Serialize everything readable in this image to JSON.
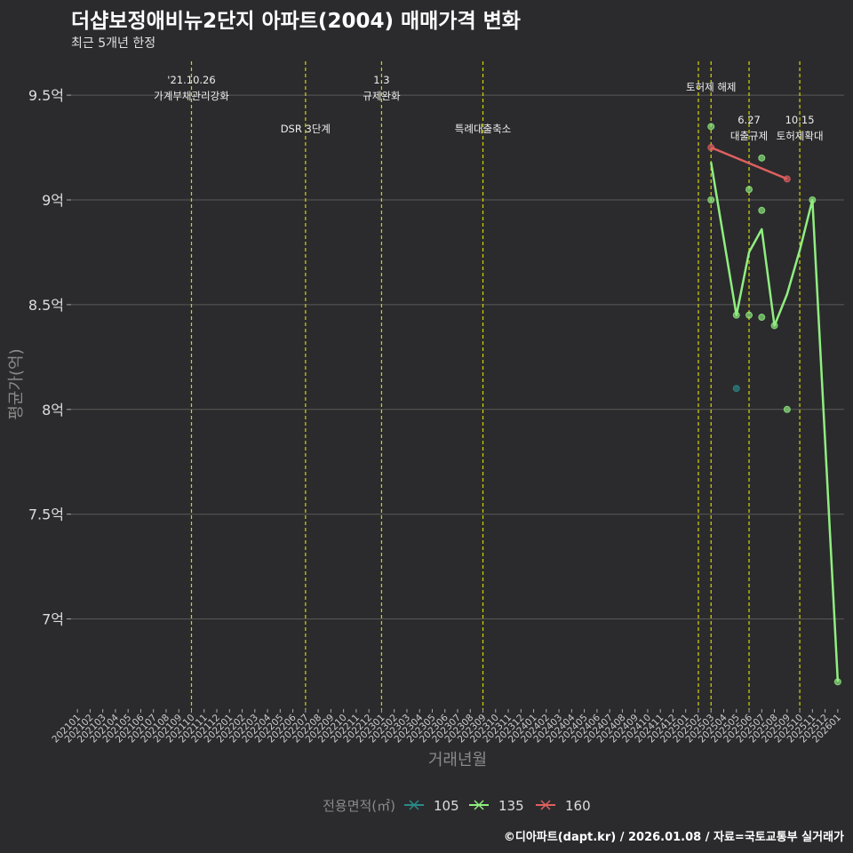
{
  "header": {
    "title": "더샵보정애비뉴2단지 아파트(2004) 매매가격 변화",
    "subtitle": "최근 5개년 한정"
  },
  "footer": {
    "source": "©디아파트(dapt.kr) / 2026.01.08 / 자료=국토교통부 실거래가"
  },
  "colors": {
    "background": "#2b2b2d",
    "grid": "#5a5a5a",
    "event_line": "#d4d400",
    "s105": "#2a8a8a",
    "s135": "#90ee80",
    "s160": "#e06060"
  },
  "chart_data": {
    "type": "line",
    "title": "더샵보정애비뉴2단지 아파트(2004) 매매가격 변화",
    "xlabel": "거래년월",
    "ylabel": "평균가(억)",
    "ylim": [
      6.57,
      9.67
    ],
    "y_ticks": [
      7,
      7.5,
      8,
      8.5,
      9,
      9.5
    ],
    "y_tick_labels": [
      "7억",
      "7.5억",
      "8억",
      "8.5억",
      "9억",
      "9.5억"
    ],
    "categories": [
      "202101",
      "202102",
      "202103",
      "202104",
      "202105",
      "202106",
      "202107",
      "202108",
      "202109",
      "202110",
      "202111",
      "202112",
      "202201",
      "202202",
      "202203",
      "202204",
      "202205",
      "202206",
      "202207",
      "202208",
      "202209",
      "202210",
      "202211",
      "202212",
      "202301",
      "202302",
      "202303",
      "202304",
      "202305",
      "202306",
      "202307",
      "202308",
      "202309",
      "202310",
      "202311",
      "202312",
      "202401",
      "202402",
      "202403",
      "202404",
      "202405",
      "202406",
      "202407",
      "202408",
      "202409",
      "202410",
      "202411",
      "202412",
      "202501",
      "202502",
      "202503",
      "202504",
      "202505",
      "202506",
      "202507",
      "202508",
      "202509",
      "202510",
      "202511",
      "202512",
      "202601"
    ],
    "legend_title": "전용면적(㎡)",
    "legend_position": "bottom",
    "events": [
      {
        "month": "202110",
        "label": "'21.10.26\n가계부채관리강화",
        "level": 1
      },
      {
        "month": "202207",
        "label": "DSR 3단계",
        "level": 2
      },
      {
        "month": "202301",
        "label": "1.3\n규제완화",
        "level": 1
      },
      {
        "month": "202309",
        "label": "특례대출축소",
        "level": 2
      },
      {
        "month": "202502",
        "label": "",
        "level": 0
      },
      {
        "month": "202503",
        "label": "토허제 해제",
        "level": 1
      },
      {
        "month": "202506",
        "label": "6.27\n대출규제",
        "level": 3
      },
      {
        "month": "202510",
        "label": "10.15\n토허제확대",
        "level": 3
      }
    ],
    "series": [
      {
        "name": "105",
        "color_key": "s105",
        "line": [],
        "points": [
          {
            "x": "202505",
            "y": 8.1
          }
        ]
      },
      {
        "name": "135",
        "color_key": "s135",
        "line": [
          {
            "x": "202503",
            "y": 9.18
          },
          {
            "x": "202505",
            "y": 8.45
          },
          {
            "x": "202506",
            "y": 8.75
          },
          {
            "x": "202507",
            "y": 8.86
          },
          {
            "x": "202508",
            "y": 8.4
          },
          {
            "x": "202509",
            "y": 8.55
          },
          {
            "x": "202510",
            "y": 8.76
          },
          {
            "x": "202511",
            "y": 9.0
          },
          {
            "x": "202601",
            "y": 6.7
          }
        ],
        "points": [
          {
            "x": "202503",
            "y": 9.35
          },
          {
            "x": "202503",
            "y": 9.0
          },
          {
            "x": "202505",
            "y": 8.45
          },
          {
            "x": "202506",
            "y": 9.05
          },
          {
            "x": "202506",
            "y": 8.45
          },
          {
            "x": "202507",
            "y": 9.2
          },
          {
            "x": "202507",
            "y": 8.95
          },
          {
            "x": "202507",
            "y": 8.44
          },
          {
            "x": "202508",
            "y": 8.4
          },
          {
            "x": "202509",
            "y": 8.0
          },
          {
            "x": "202511",
            "y": 9.0
          },
          {
            "x": "202601",
            "y": 6.7
          }
        ]
      },
      {
        "name": "160",
        "color_key": "s160",
        "line": [
          {
            "x": "202503",
            "y": 9.25
          },
          {
            "x": "202509",
            "y": 9.1
          }
        ],
        "points": [
          {
            "x": "202503",
            "y": 9.25
          },
          {
            "x": "202509",
            "y": 9.1
          }
        ]
      }
    ]
  }
}
